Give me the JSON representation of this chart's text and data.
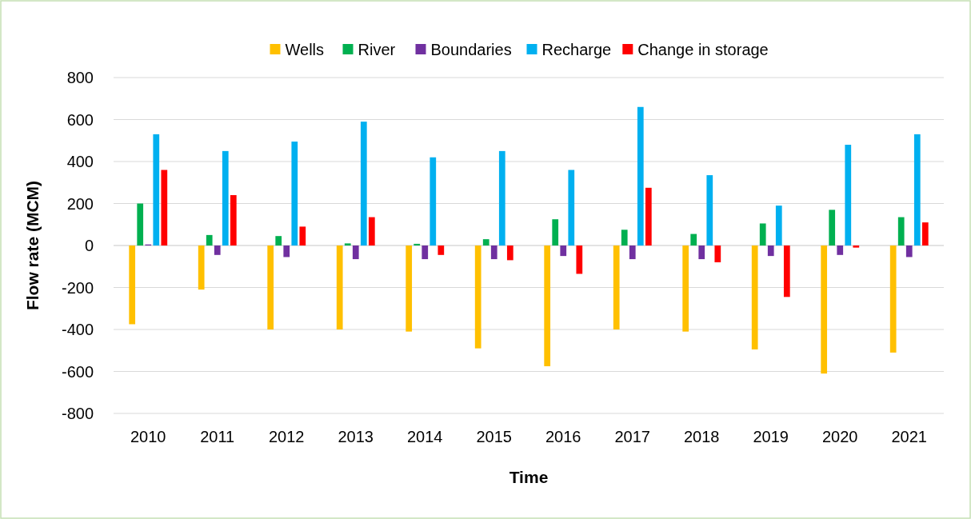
{
  "chart_data": {
    "type": "bar",
    "xlabel": "Time",
    "ylabel": "Flow rate (MCM)",
    "categories": [
      "2010",
      "2011",
      "2012",
      "2013",
      "2014",
      "2015",
      "2016",
      "2017",
      "2018",
      "2019",
      "2020",
      "2021"
    ],
    "series": [
      {
        "name": "Wells",
        "color": "#ffc000",
        "values": [
          -375,
          -210,
          -400,
          -400,
          -410,
          -490,
          -575,
          -400,
          -410,
          -495,
          -610,
          -510
        ]
      },
      {
        "name": "River",
        "color": "#00b050",
        "values": [
          200,
          50,
          45,
          10,
          8,
          30,
          125,
          75,
          55,
          105,
          170,
          135
        ]
      },
      {
        "name": "Boundaries",
        "color": "#7030a0",
        "values": [
          5,
          -45,
          -55,
          -65,
          -65,
          -65,
          -50,
          -65,
          -65,
          -50,
          -45,
          -55
        ]
      },
      {
        "name": "Recharge",
        "color": "#00b0f0",
        "values": [
          530,
          450,
          495,
          590,
          420,
          450,
          360,
          660,
          335,
          190,
          480,
          530
        ]
      },
      {
        "name": "Change in storage",
        "color": "#ff0000",
        "values": [
          360,
          240,
          90,
          135,
          -45,
          -70,
          -135,
          275,
          -80,
          -245,
          -10,
          110
        ]
      }
    ],
    "ylim": [
      -800,
      800
    ],
    "yticks": [
      -800,
      -600,
      -400,
      -200,
      0,
      200,
      400,
      600,
      800
    ],
    "grid": "y",
    "legend": "top"
  }
}
